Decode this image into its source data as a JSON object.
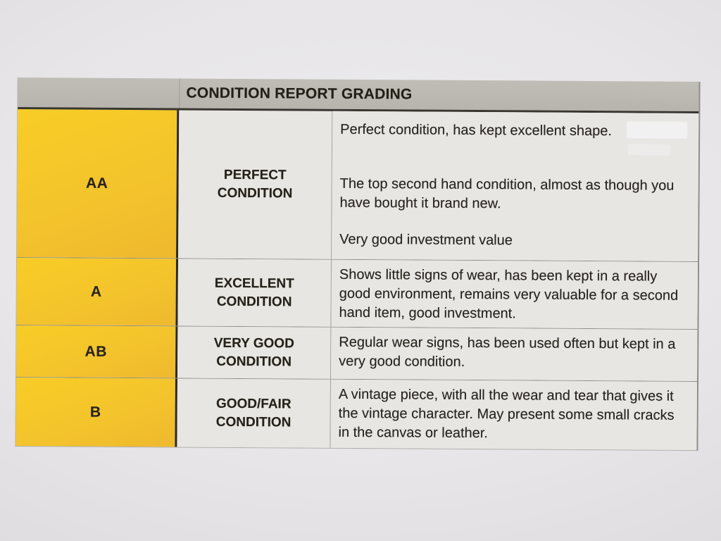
{
  "colors": {
    "paper": "#e7e5e7",
    "header_gray": "#bab7b0",
    "grade_yellow": "#f4c42c",
    "text": "#27241f",
    "dark_border": "#2b2823"
  },
  "table": {
    "header": {
      "title": "CONDITION REPORT GRADING"
    },
    "rows": [
      {
        "grade": "AA",
        "condition": "PERFECT CONDITION",
        "description_paragraphs": [
          "Perfect condition, has kept excellent shape.",
          "The top second hand condition, almost as though you have bought it brand new.",
          "Very good investment value"
        ]
      },
      {
        "grade": "A",
        "condition": "EXCELLENT CONDITION",
        "description_paragraphs": [
          "Shows little signs of wear, has been kept in a really good environment, remains very valuable for a second hand item, good investment."
        ]
      },
      {
        "grade": "AB",
        "condition": "VERY GOOD CONDITION",
        "description_paragraphs": [
          "Regular wear signs, has been used often but kept in a very good condition."
        ]
      },
      {
        "grade": "B",
        "condition": "GOOD/FAIR CONDITION",
        "description_paragraphs": [
          "A vintage piece, with all the wear and tear that gives it the vintage character. May present some small cracks in the canvas or leather."
        ]
      }
    ]
  }
}
